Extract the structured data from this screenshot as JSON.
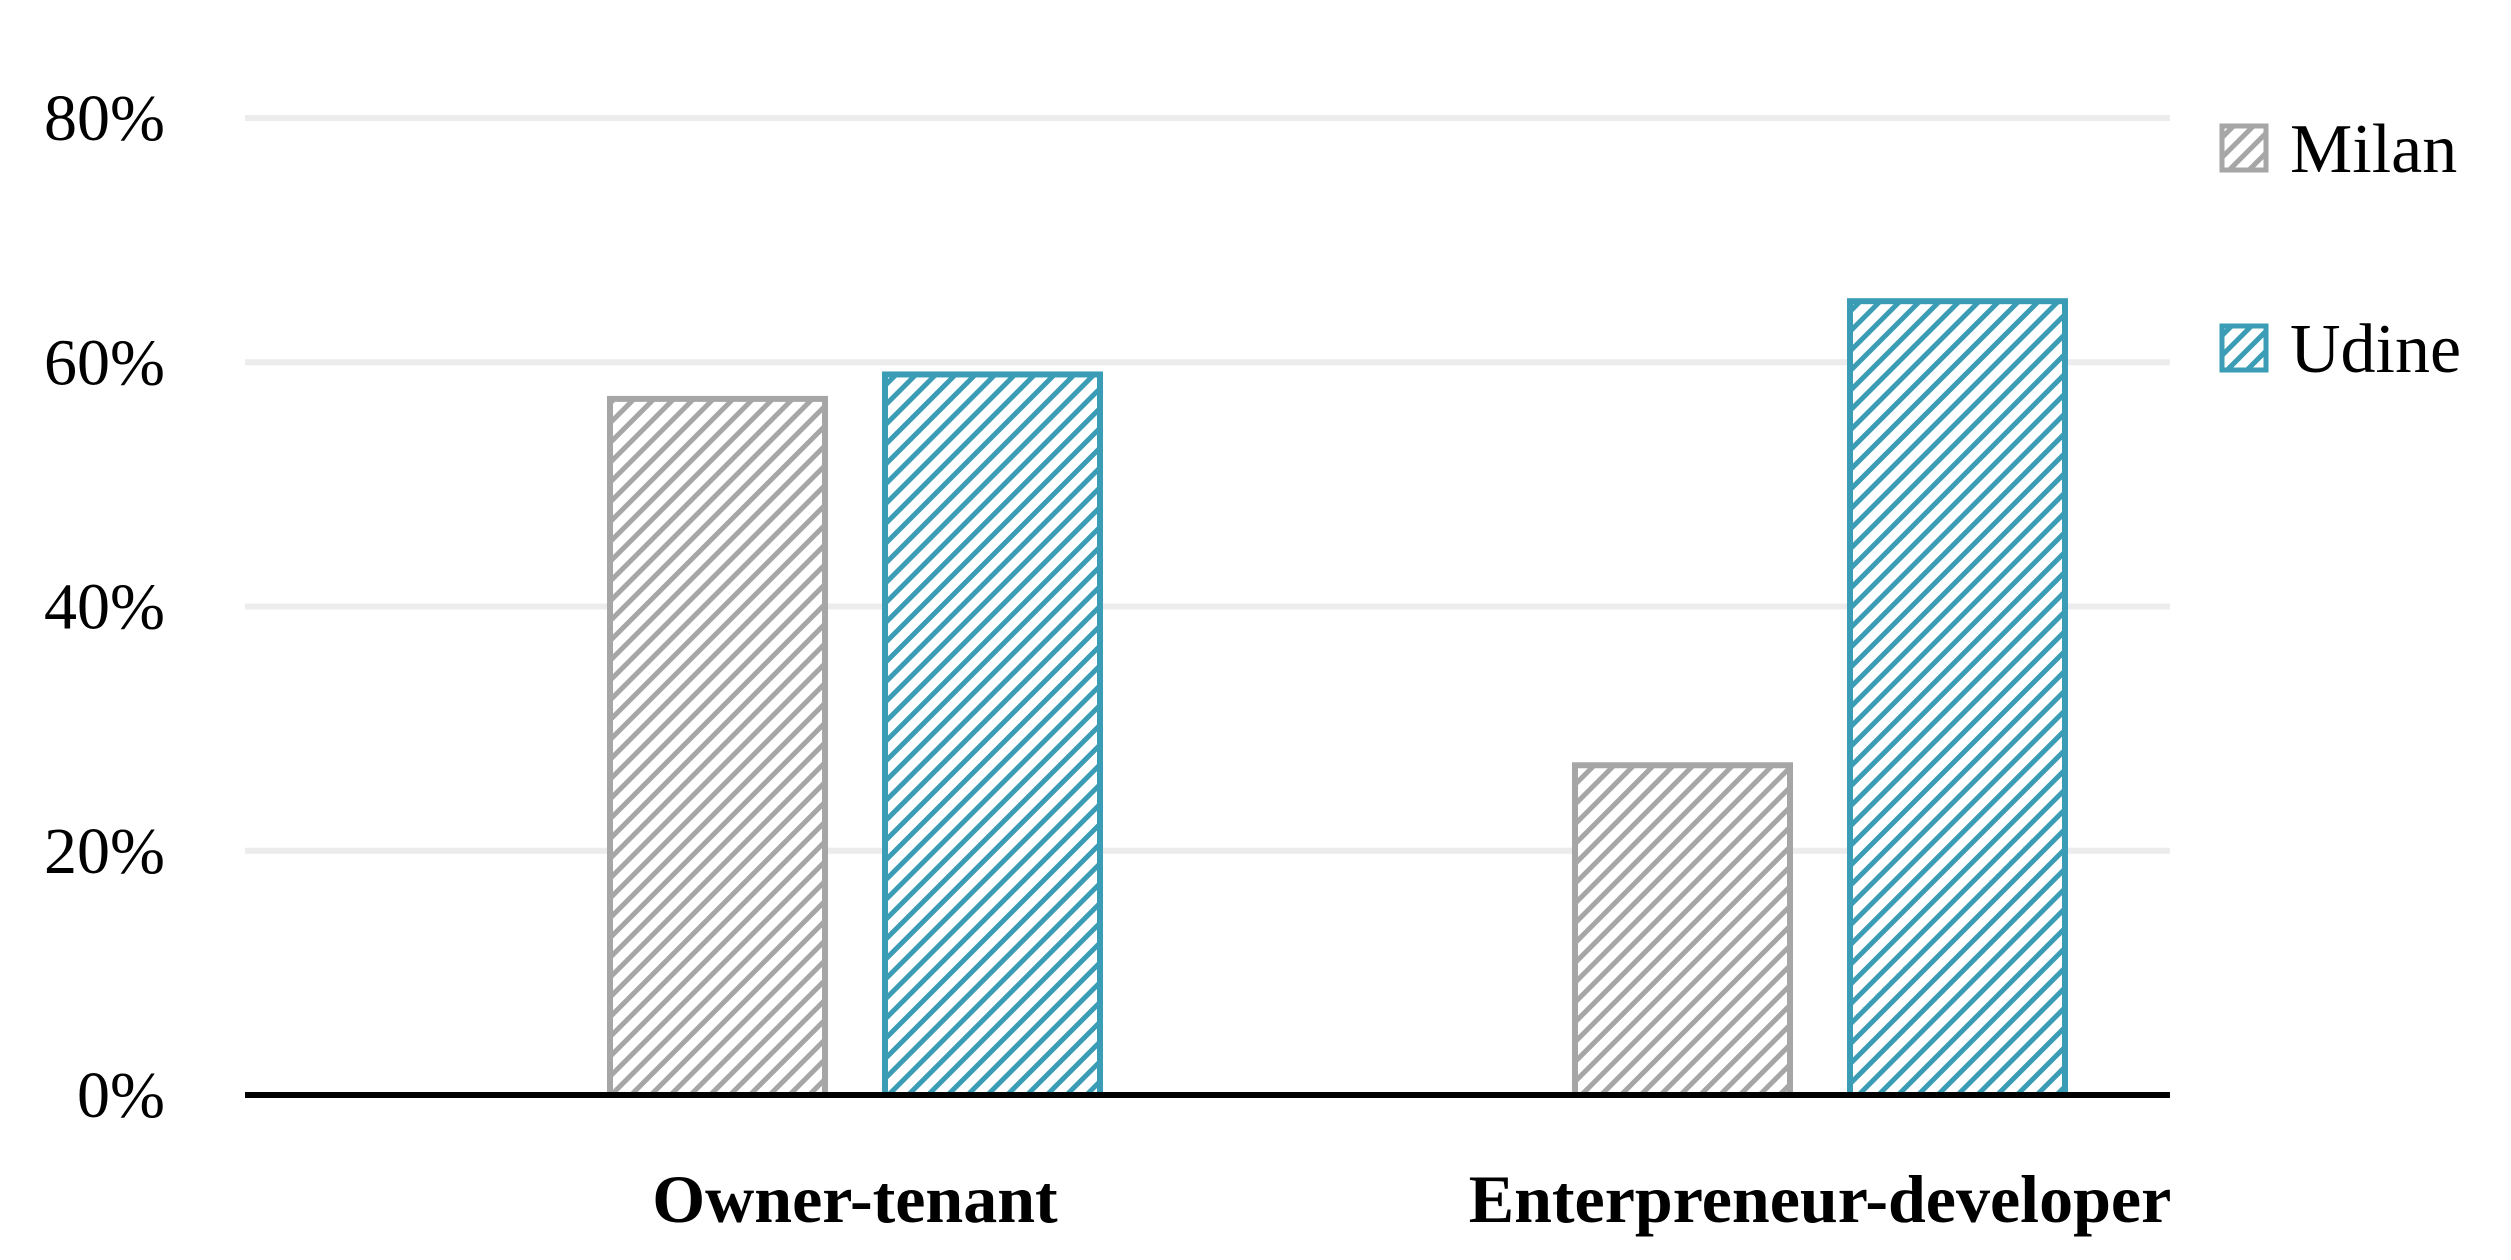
{
  "chart_data": {
    "type": "bar",
    "categories": [
      "Owner-tenant",
      "Enterpreneur-developer"
    ],
    "series": [
      {
        "name": "Milan",
        "values": [
          57,
          27
        ],
        "color": "#a6a6a6"
      },
      {
        "name": "Udine",
        "values": [
          59,
          65
        ],
        "color": "#3a9db5"
      }
    ],
    "ylim": [
      0,
      80
    ],
    "yticks": [
      "0%",
      "20%",
      "40%",
      "60%",
      "80%"
    ],
    "ytick_values": [
      0,
      20,
      40,
      60,
      80
    ],
    "grid": true,
    "legend_position": "right",
    "fill_pattern": "diagonal-hatch"
  }
}
